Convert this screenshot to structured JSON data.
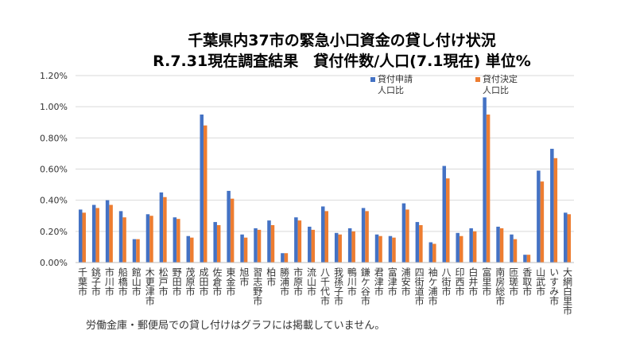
{
  "chart_data": {
    "type": "bar",
    "title": "千葉県内37市の緊急小口資金の貸し付け状況",
    "subtitle": "R.7.31現在調査結果　貸付件数/人口(7.1現在) 単位%",
    "ylim": [
      0,
      1.2
    ],
    "yticks": [
      "0.00%",
      "0.20%",
      "0.40%",
      "0.60%",
      "0.80%",
      "1.00%",
      "1.20%"
    ],
    "grid": true,
    "legend_position": "top-right",
    "categories": [
      "千葉市",
      "銚子市",
      "市川市",
      "船橋市",
      "館山市",
      "木更津市",
      "松戸市",
      "野田市",
      "茂原市",
      "成田市",
      "佐倉市",
      "東金市",
      "旭市",
      "習志野市",
      "柏市",
      "勝浦市",
      "市原市",
      "流山市",
      "八千代市",
      "我孫子市",
      "鴨川市",
      "鎌ケ谷市",
      "君津市",
      "富津市",
      "浦安市",
      "四街道市",
      "袖ケ浦市",
      "八街市",
      "印西市",
      "白井市",
      "富里市",
      "南房総市",
      "匝瑳市",
      "香取市",
      "山武市",
      "いすみ市",
      "大網白里市"
    ],
    "series": [
      {
        "name": "貸付申請人口比",
        "legend_lines": [
          "貸付申請",
          "人口比"
        ],
        "color": "#4472c4",
        "values": [
          0.34,
          0.37,
          0.4,
          0.33,
          0.15,
          0.31,
          0.45,
          0.29,
          0.17,
          0.95,
          0.26,
          0.46,
          0.18,
          0.22,
          0.27,
          0.06,
          0.29,
          0.23,
          0.36,
          0.19,
          0.22,
          0.35,
          0.18,
          0.17,
          0.38,
          0.26,
          0.13,
          0.62,
          0.19,
          0.22,
          1.06,
          0.23,
          0.18,
          0.05,
          0.59,
          0.73,
          0.32
        ]
      },
      {
        "name": "貸付決定人口比",
        "legend_lines": [
          "貸付決定",
          "人口比"
        ],
        "color": "#ed7d31",
        "values": [
          0.32,
          0.35,
          0.37,
          0.29,
          0.15,
          0.3,
          0.42,
          0.28,
          0.16,
          0.88,
          0.24,
          0.41,
          0.16,
          0.21,
          0.24,
          0.06,
          0.27,
          0.21,
          0.33,
          0.18,
          0.2,
          0.33,
          0.17,
          0.16,
          0.34,
          0.24,
          0.12,
          0.54,
          0.17,
          0.2,
          0.95,
          0.22,
          0.15,
          0.05,
          0.52,
          0.67,
          0.31
        ]
      }
    ]
  },
  "note": "労働金庫・郵便局での貸し付けはグラフには掲載していません。"
}
